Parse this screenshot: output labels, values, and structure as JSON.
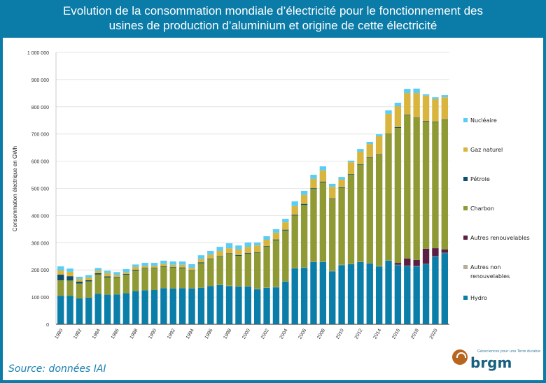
{
  "header": {
    "title_line1": "Evolution de la consommation mondiale d’électricité pour le fonctionnement des",
    "title_line2": "usines de production d’aluminium et origine de cette électricité"
  },
  "source": "Source: données IAI",
  "logo": {
    "name": "brgm",
    "tagline": "Géosciences pour une Terre durable"
  },
  "chart_data": {
    "type": "bar",
    "stacked": true,
    "ylabel": "Consommation électrique en GWh",
    "ylim": [
      0,
      1000000
    ],
    "yticks": [
      "0",
      "100 000",
      "200 000",
      "300 000",
      "400 000",
      "500 000",
      "600 000",
      "700 000",
      "800 000",
      "900 000",
      "1 000 000"
    ],
    "grid": true,
    "legend_position": "right",
    "categories": [
      1980,
      1981,
      1982,
      1983,
      1984,
      1985,
      1986,
      1987,
      1988,
      1989,
      1990,
      1991,
      1992,
      1993,
      1994,
      1995,
      1996,
      1997,
      1998,
      1999,
      2000,
      2001,
      2002,
      2003,
      2004,
      2005,
      2006,
      2007,
      2008,
      2009,
      2010,
      2011,
      2012,
      2013,
      2014,
      2015,
      2016,
      2017,
      2018,
      2019,
      2020,
      2021
    ],
    "xtick_labels": [
      "1980",
      "1982",
      "1984",
      "1986",
      "1988",
      "1990",
      "1992",
      "1994",
      "1996",
      "1998",
      "2000",
      "2002",
      "2004",
      "2006",
      "2008",
      "2010",
      "2012",
      "2014",
      "2016",
      "2018",
      "2020"
    ],
    "series": [
      {
        "name": "Hydro",
        "color": "#0a7ea8",
        "values": [
          105000,
          105000,
          95000,
          98000,
          112000,
          109000,
          110000,
          115000,
          122000,
          125000,
          126000,
          133000,
          132000,
          133000,
          132000,
          134000,
          141000,
          144000,
          141000,
          139000,
          139000,
          129000,
          134000,
          136000,
          157000,
          206000,
          208000,
          229000,
          229000,
          195000,
          218000,
          221000,
          229000,
          224000,
          213000,
          234000,
          218000,
          214000,
          213000,
          221000,
          249000,
          262000
        ]
      },
      {
        "name": "Autres non renouvelables",
        "color": "#b9ab95",
        "values": [
          0,
          0,
          0,
          0,
          0,
          0,
          0,
          0,
          0,
          0,
          0,
          0,
          0,
          0,
          0,
          0,
          0,
          1000,
          1000,
          1000,
          1000,
          1000,
          1000,
          1000,
          1000,
          1000,
          1000,
          1000,
          1000,
          1000,
          1000,
          1000,
          1000,
          1000,
          1000,
          1000,
          1000,
          1000,
          1000,
          1000,
          1000,
          1000
        ]
      },
      {
        "name": "Autres renouvelables",
        "color": "#5c1f44",
        "values": [
          0,
          0,
          0,
          0,
          0,
          0,
          0,
          0,
          0,
          0,
          0,
          0,
          0,
          0,
          0,
          0,
          0,
          0,
          0,
          0,
          0,
          0,
          0,
          0,
          0,
          0,
          0,
          0,
          0,
          0,
          0,
          0,
          0,
          0,
          0,
          0,
          7000,
          27000,
          23000,
          56000,
          30000,
          12000
        ]
      },
      {
        "name": "Charbon",
        "color": "#8f9a35",
        "values": [
          57000,
          56000,
          55000,
          60000,
          71000,
          63000,
          60000,
          67000,
          76000,
          80000,
          80000,
          79000,
          77000,
          73000,
          64000,
          91000,
          99000,
          104000,
          117000,
          112000,
          119000,
          133000,
          151000,
          172000,
          187000,
          193000,
          230000,
          268000,
          292000,
          265000,
          283000,
          329000,
          357000,
          387000,
          409000,
          466000,
          496000,
          527000,
          523000,
          468000,
          464000,
          476000
        ]
      },
      {
        "name": "Pétrole",
        "color": "#0d4f6e",
        "values": [
          21000,
          16000,
          7000,
          4000,
          5000,
          4000,
          3000,
          3000,
          3000,
          2000,
          2000,
          2000,
          2000,
          3000,
          2000,
          3000,
          2000,
          2000,
          2000,
          3000,
          3000,
          2000,
          2000,
          3000,
          3000,
          3000,
          4000,
          3000,
          3000,
          2000,
          2000,
          2000,
          2000,
          2000,
          2000,
          1000,
          3000,
          2000,
          1000,
          2000,
          2000,
          2000
        ]
      },
      {
        "name": "Gaz naturel",
        "color": "#d9b53e",
        "values": [
          15000,
          16000,
          10000,
          10000,
          9000,
          12000,
          9000,
          6000,
          10000,
          7000,
          7000,
          8000,
          8000,
          10000,
          10000,
          12000,
          14000,
          19000,
          19000,
          20000,
          23000,
          25000,
          23000,
          25000,
          27000,
          32000,
          33000,
          34000,
          41000,
          43000,
          28000,
          43000,
          46000,
          49000,
          67000,
          72000,
          77000,
          80000,
          90000,
          93000,
          82000,
          82000
        ]
      },
      {
        "name": "Nucléaire",
        "color": "#5bcdf5",
        "values": [
          15000,
          12000,
          8000,
          9000,
          10000,
          9000,
          10000,
          12000,
          9000,
          12000,
          11000,
          12000,
          12000,
          12000,
          13000,
          14000,
          14000,
          15000,
          18000,
          15000,
          16000,
          11000,
          13000,
          13000,
          13000,
          17000,
          15000,
          15000,
          15000,
          11000,
          10000,
          6000,
          10000,
          8000,
          7000,
          13000,
          13000,
          15000,
          16000,
          5000,
          7000,
          8000
        ]
      }
    ],
    "legend_order": [
      "Nucléaire",
      "Gaz naturel",
      "Pétrole",
      "Charbon",
      "Autres renouvelables",
      "Autres non renouvelables",
      "Hydro"
    ]
  },
  "colors": {
    "frame": "#0b7ba8",
    "source_text": "#1a7fb0",
    "logo_orange": "#b8661f",
    "logo_blue": "#17607f"
  }
}
